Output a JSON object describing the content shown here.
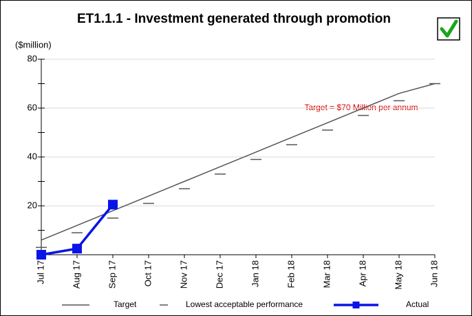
{
  "chart_data": {
    "type": "line",
    "title": "ET1.1.1 - Investment generated through promotion",
    "y_label": "($million)",
    "annotation": "Target = $70 Million per annum",
    "categories": [
      "Jul 17",
      "Aug 17",
      "Sep 17",
      "Oct 17",
      "Nov 17",
      "Dec 17",
      "Jan 18",
      "Feb 18",
      "Mar 18",
      "Apr 18",
      "May 18",
      "Jun 18"
    ],
    "series": [
      {
        "name": "Target",
        "color": "#555555",
        "style": "line",
        "values": [
          6,
          12,
          18,
          24,
          30,
          36,
          42,
          48,
          54,
          60,
          66,
          70
        ]
      },
      {
        "name": "Lowest acceptable performance",
        "color": "#555555",
        "style": "dash",
        "values": [
          3,
          9,
          15,
          21,
          27,
          33,
          39,
          45,
          51,
          57,
          63,
          70
        ]
      },
      {
        "name": "Actual",
        "color": "#0a14e6",
        "style": "line-square",
        "values": [
          0,
          2.5,
          20.5,
          null,
          null,
          null,
          null,
          null,
          null,
          null,
          null,
          null
        ]
      }
    ],
    "ylim": [
      0,
      80
    ],
    "yticks": [
      20,
      40,
      60,
      80
    ],
    "yminor_ticks": [
      10,
      30,
      50,
      70
    ],
    "grid": true,
    "legend": "bottom"
  }
}
